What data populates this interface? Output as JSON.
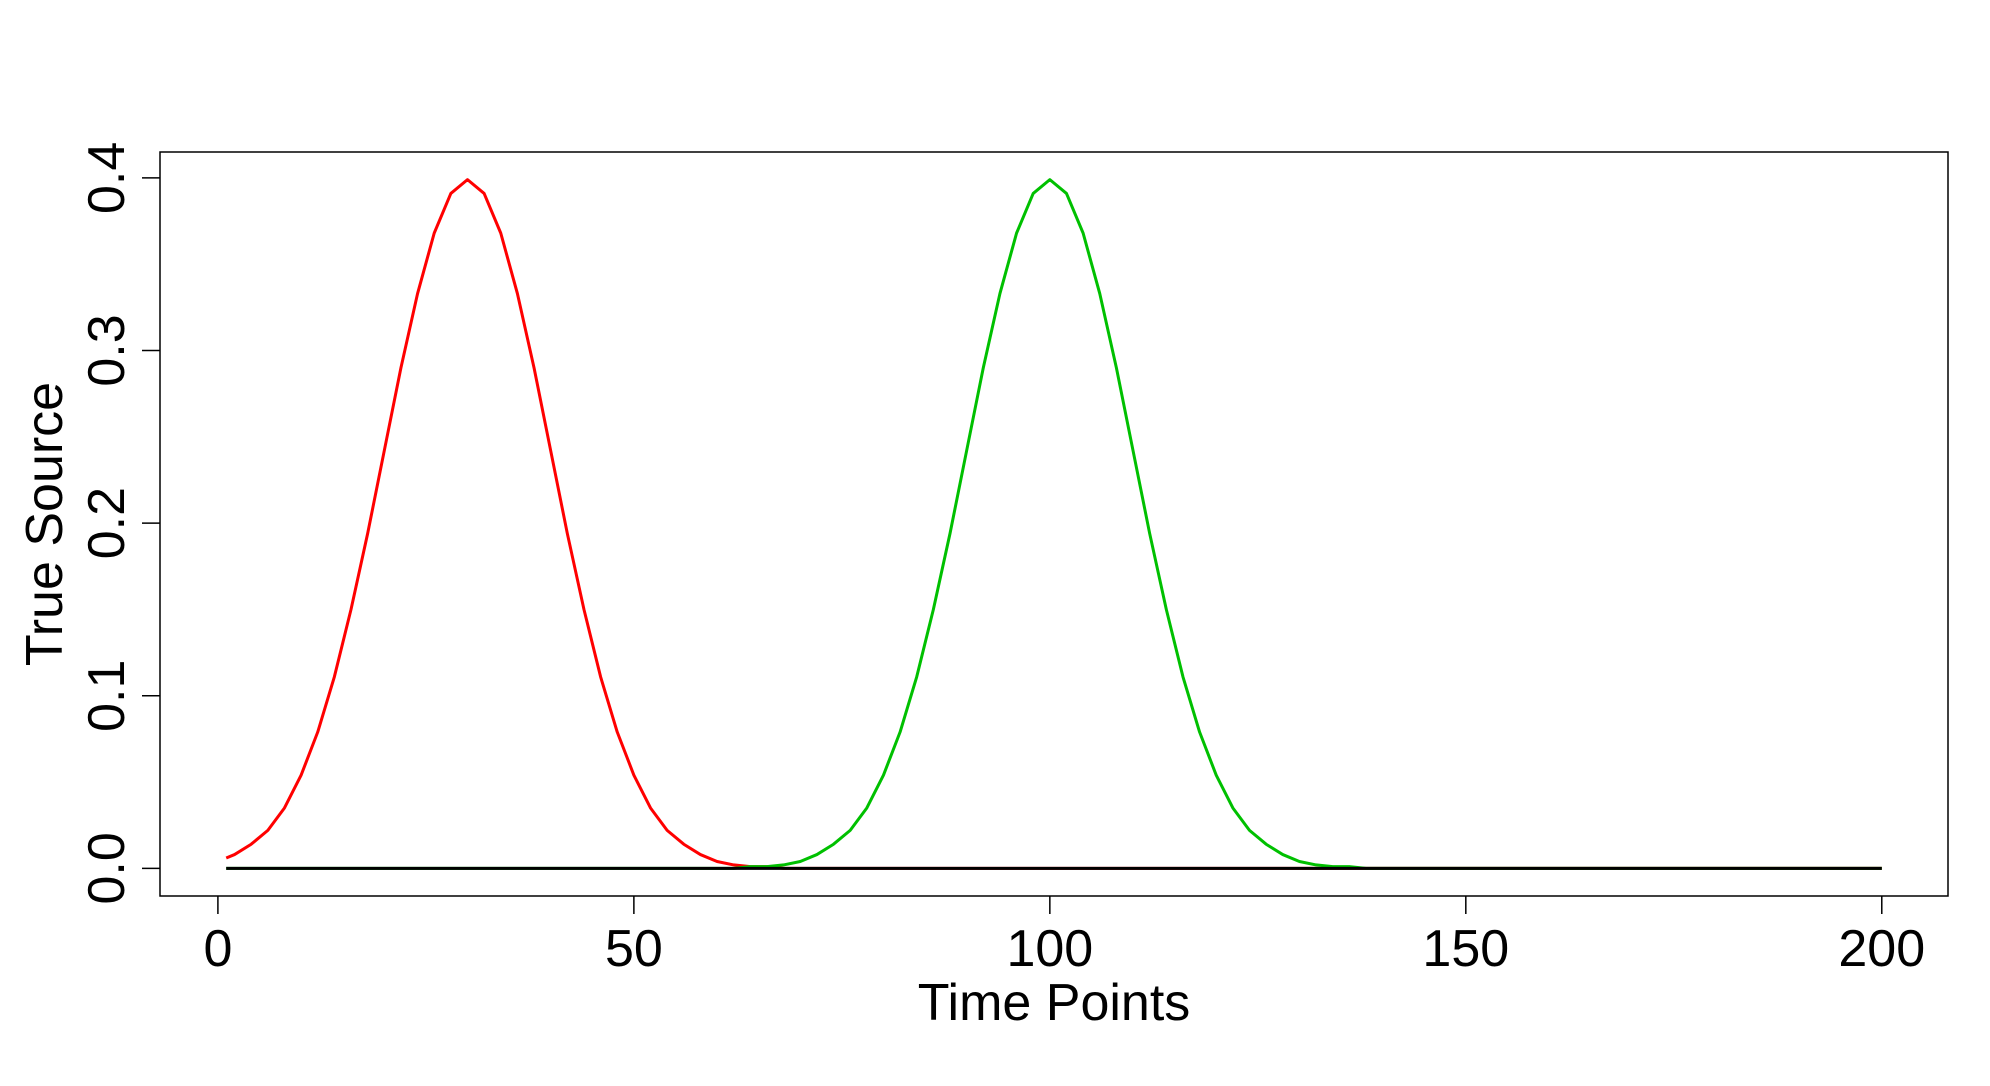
{
  "chart_data": {
    "type": "line",
    "x_label": "Time Points",
    "y_label": "True Source",
    "x": [
      1,
      2,
      4,
      6,
      8,
      10,
      12,
      14,
      16,
      18,
      20,
      22,
      24,
      26,
      28,
      30,
      32,
      34,
      36,
      38,
      40,
      42,
      44,
      46,
      48,
      50,
      52,
      54,
      56,
      58,
      60,
      62,
      64,
      66,
      68,
      70,
      72,
      74,
      76,
      78,
      80,
      82,
      84,
      86,
      88,
      90,
      92,
      94,
      96,
      98,
      100,
      102,
      104,
      106,
      108,
      110,
      112,
      114,
      116,
      118,
      120,
      122,
      124,
      126,
      128,
      130,
      132,
      134,
      136,
      138,
      140,
      142,
      144,
      146,
      148,
      150,
      152,
      154,
      156,
      158,
      160,
      162,
      164,
      166,
      168,
      170,
      172,
      174,
      176,
      178,
      180,
      182,
      184,
      186,
      188,
      190,
      192,
      194,
      196,
      198,
      200
    ],
    "series": [
      {
        "color": "#ff0000",
        "values": [
          0.006,
          0.008,
          0.014,
          0.022,
          0.035,
          0.054,
          0.079,
          0.111,
          0.15,
          0.194,
          0.242,
          0.29,
          0.333,
          0.368,
          0.391,
          0.399,
          0.391,
          0.368,
          0.333,
          0.29,
          0.242,
          0.194,
          0.15,
          0.111,
          0.079,
          0.054,
          0.035,
          0.022,
          0.014,
          0.008,
          0.004,
          0.002,
          0.001,
          0.001,
          0,
          0,
          0,
          0,
          0,
          0,
          0,
          0,
          0,
          0,
          0,
          0,
          0,
          0,
          0,
          0,
          0,
          0,
          0,
          0,
          0,
          0,
          0,
          0,
          0,
          0,
          0,
          0,
          0,
          0,
          0,
          0,
          0,
          0,
          0,
          0,
          0,
          0,
          0,
          0,
          0,
          0,
          0,
          0,
          0,
          0,
          0,
          0,
          0,
          0,
          0,
          0,
          0,
          0,
          0,
          0,
          0,
          0,
          0,
          0,
          0,
          0,
          0,
          0,
          0,
          0,
          0
        ]
      },
      {
        "color": "#00c000",
        "values": [
          0,
          0,
          0,
          0,
          0,
          0,
          0,
          0,
          0,
          0,
          0,
          0,
          0,
          0,
          0,
          0,
          0,
          0,
          0,
          0,
          0,
          0,
          0,
          0,
          0,
          0,
          0,
          0,
          0,
          0,
          0,
          0,
          0.001,
          0.001,
          0.002,
          0.004,
          0.008,
          0.014,
          0.022,
          0.035,
          0.054,
          0.079,
          0.111,
          0.15,
          0.194,
          0.242,
          0.29,
          0.333,
          0.368,
          0.391,
          0.399,
          0.391,
          0.368,
          0.333,
          0.29,
          0.242,
          0.194,
          0.15,
          0.111,
          0.079,
          0.054,
          0.035,
          0.022,
          0.014,
          0.008,
          0.004,
          0.002,
          0.001,
          0.001,
          0,
          0,
          0,
          0,
          0,
          0,
          0,
          0,
          0,
          0,
          0,
          0,
          0,
          0,
          0,
          0,
          0,
          0,
          0,
          0,
          0,
          0,
          0,
          0,
          0,
          0,
          0,
          0,
          0,
          0,
          0,
          0
        ]
      },
      {
        "color": "#000000",
        "values": [
          0,
          0,
          0,
          0,
          0,
          0,
          0,
          0,
          0,
          0,
          0,
          0,
          0,
          0,
          0,
          0,
          0,
          0,
          0,
          0,
          0,
          0,
          0,
          0,
          0,
          0,
          0,
          0,
          0,
          0,
          0,
          0,
          0,
          0,
          0,
          0,
          0,
          0,
          0,
          0,
          0,
          0,
          0,
          0,
          0,
          0,
          0,
          0,
          0,
          0,
          0,
          0,
          0,
          0,
          0,
          0,
          0,
          0,
          0,
          0,
          0,
          0,
          0,
          0,
          0,
          0,
          0,
          0,
          0,
          0,
          0,
          0,
          0,
          0,
          0,
          0,
          0,
          0,
          0,
          0,
          0,
          0,
          0,
          0,
          0,
          0,
          0,
          0,
          0,
          0,
          0,
          0,
          0,
          0,
          0,
          0,
          0,
          0,
          0,
          0,
          0
        ]
      }
    ],
    "xlim": [
      -6.96,
      207.96
    ],
    "xticks": [
      0,
      50,
      100,
      150,
      200
    ],
    "ylim": [
      -0.016,
      0.415
    ],
    "yticks": [
      {
        "value": 0,
        "label": "0.0"
      },
      0.1,
      0.2,
      0.3,
      0.4
    ]
  }
}
